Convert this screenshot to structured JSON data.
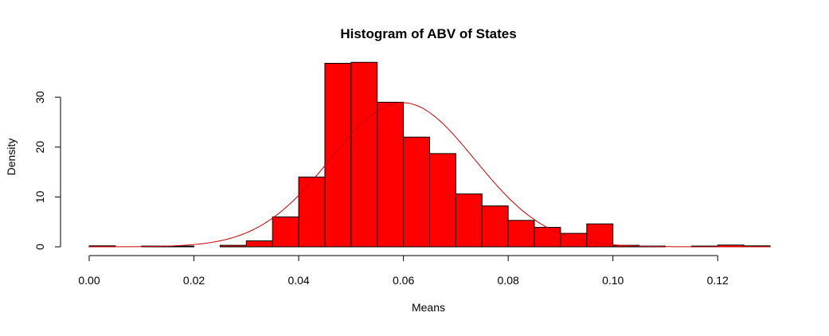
{
  "chart_data": {
    "type": "bar",
    "title": "Histogram of ABV of States",
    "xlabel": "Means",
    "ylabel": "Density",
    "xlim": [
      0.0,
      0.13
    ],
    "ylim": [
      0,
      38
    ],
    "x_ticks": [
      "0.00",
      "0.02",
      "0.04",
      "0.06",
      "0.08",
      "0.10",
      "0.12"
    ],
    "x_tick_values": [
      0.0,
      0.02,
      0.04,
      0.06,
      0.08,
      0.1,
      0.12
    ],
    "y_ticks": [
      "0",
      "10",
      "20",
      "30"
    ],
    "y_tick_values": [
      0,
      10,
      20,
      30
    ],
    "bin_width": 0.005,
    "bins": [
      {
        "start": 0.0,
        "end": 0.005,
        "density": 0.2
      },
      {
        "start": 0.005,
        "end": 0.01,
        "density": 0.0
      },
      {
        "start": 0.01,
        "end": 0.015,
        "density": 0.15
      },
      {
        "start": 0.015,
        "end": 0.02,
        "density": 0.15
      },
      {
        "start": 0.02,
        "end": 0.025,
        "density": 0.0
      },
      {
        "start": 0.025,
        "end": 0.03,
        "density": 0.3
      },
      {
        "start": 0.03,
        "end": 0.035,
        "density": 1.2
      },
      {
        "start": 0.035,
        "end": 0.04,
        "density": 6.0
      },
      {
        "start": 0.04,
        "end": 0.045,
        "density": 14.0
      },
      {
        "start": 0.045,
        "end": 0.05,
        "density": 36.8
      },
      {
        "start": 0.05,
        "end": 0.055,
        "density": 37.0
      },
      {
        "start": 0.055,
        "end": 0.06,
        "density": 29.0
      },
      {
        "start": 0.06,
        "end": 0.065,
        "density": 22.0
      },
      {
        "start": 0.065,
        "end": 0.07,
        "density": 18.7
      },
      {
        "start": 0.07,
        "end": 0.075,
        "density": 10.6
      },
      {
        "start": 0.075,
        "end": 0.08,
        "density": 8.2
      },
      {
        "start": 0.08,
        "end": 0.085,
        "density": 5.3
      },
      {
        "start": 0.085,
        "end": 0.09,
        "density": 3.9
      },
      {
        "start": 0.09,
        "end": 0.095,
        "density": 2.7
      },
      {
        "start": 0.095,
        "end": 0.1,
        "density": 4.6
      },
      {
        "start": 0.1,
        "end": 0.105,
        "density": 0.3
      },
      {
        "start": 0.105,
        "end": 0.11,
        "density": 0.15
      },
      {
        "start": 0.11,
        "end": 0.115,
        "density": 0.0
      },
      {
        "start": 0.115,
        "end": 0.12,
        "density": 0.15
      },
      {
        "start": 0.12,
        "end": 0.125,
        "density": 0.35
      },
      {
        "start": 0.125,
        "end": 0.13,
        "density": 0.2
      }
    ],
    "normal_curve": {
      "mean": 0.0598,
      "sd": 0.0138,
      "color": "#cc0000"
    },
    "bar_fill": "#ff0000",
    "bar_stroke": "#000000",
    "grid": false,
    "legend": "none"
  }
}
